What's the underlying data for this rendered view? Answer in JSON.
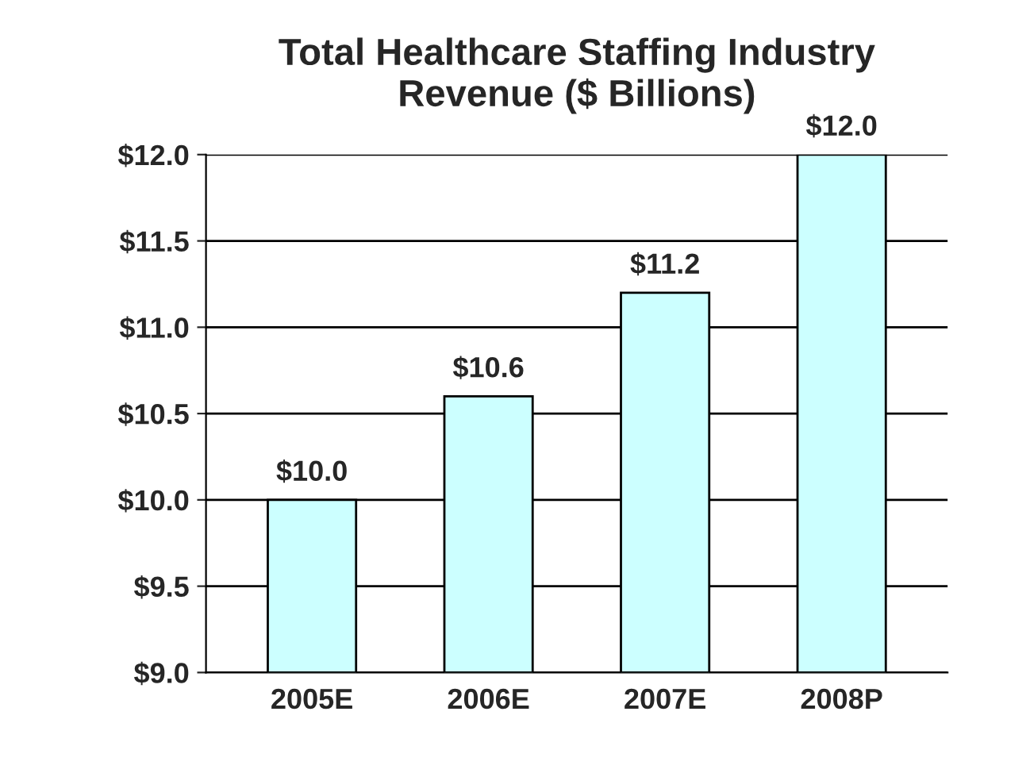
{
  "chart_data": {
    "type": "bar",
    "title": "Total Healthcare Staffing Industry\nRevenue ($ Billions)",
    "categories": [
      "2005E",
      "2006E",
      "2007E",
      "2008P"
    ],
    "values": [
      10.0,
      10.6,
      11.2,
      12.0
    ],
    "value_labels": [
      "$10.0",
      "$10.6",
      "$11.2",
      "$12.0"
    ],
    "color": "#ccffff",
    "ylim": [
      9.0,
      12.0
    ],
    "yticks": [
      {
        "value": 9.0,
        "label": "$9.0"
      },
      {
        "value": 9.5,
        "label": "$9.5"
      },
      {
        "value": 10.0,
        "label": "$10.0"
      },
      {
        "value": 10.5,
        "label": "$10.5"
      },
      {
        "value": 11.0,
        "label": "$11.0"
      },
      {
        "value": 11.5,
        "label": "$11.5"
      },
      {
        "value": 12.0,
        "label": "$12.0"
      }
    ],
    "grid": "y",
    "legend": false
  }
}
